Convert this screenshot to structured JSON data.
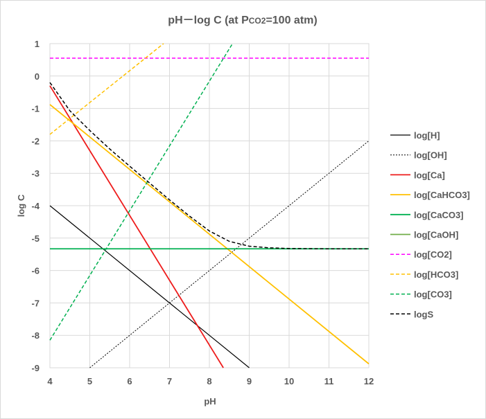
{
  "chart_data": {
    "type": "line",
    "title": {
      "main": "pH－log C (at P",
      "sub": "CO2",
      "tail": "=100 atm)"
    },
    "xlabel": "pH",
    "ylabel": "log C",
    "xlim": [
      4,
      12
    ],
    "ylim": [
      -9,
      1
    ],
    "xticks": [
      "4",
      "5",
      "6",
      "7",
      "8",
      "9",
      "10",
      "11",
      "12"
    ],
    "yticks": [
      "1",
      "0",
      "-1",
      "-2",
      "-3",
      "-4",
      "-5",
      "-6",
      "-7",
      "-8",
      "-9"
    ],
    "grid": {
      "vertical": true,
      "horizontal": true,
      "color": "#d9d9d9"
    },
    "legend_position": "right",
    "series": [
      {
        "name": "log[H]",
        "color": "#000000",
        "dash": "solid",
        "points": [
          [
            4,
            -4
          ],
          [
            9,
            -9
          ]
        ]
      },
      {
        "name": "log[OH]",
        "color": "#000000",
        "dash": "dotted",
        "points": [
          [
            5,
            -9
          ],
          [
            12,
            -2
          ]
        ]
      },
      {
        "name": "log[Ca]",
        "color": "#ee1c1c",
        "dash": "solid",
        "points": [
          [
            4,
            -0.3
          ],
          [
            8.35,
            -9
          ]
        ]
      },
      {
        "name": "log[CaHCO3]",
        "color": "#ffc000",
        "dash": "solid",
        "points": [
          [
            4,
            -0.88
          ],
          [
            12,
            -8.88
          ]
        ]
      },
      {
        "name": "log[CaCO3]",
        "color": "#00b050",
        "dash": "solid",
        "points": [
          [
            4,
            -5.33
          ],
          [
            12,
            -5.33
          ]
        ]
      },
      {
        "name": "log[CaOH]",
        "color": "#70ad47",
        "dash": "solid",
        "points": []
      },
      {
        "name": "log[CO2]",
        "color": "#ff00ff",
        "dash": "dashed",
        "points": [
          [
            4,
            0.55
          ],
          [
            12,
            0.55
          ]
        ]
      },
      {
        "name": "log[HCO3]",
        "color": "#ffc000",
        "dash": "dashed",
        "points": [
          [
            4,
            -1.8
          ],
          [
            6.85,
            1
          ]
        ]
      },
      {
        "name": "log[CO3]",
        "color": "#00b050",
        "dash": "dashed",
        "points": [
          [
            4,
            -8.15
          ],
          [
            8.58,
            1
          ]
        ]
      },
      {
        "name": "logS",
        "color": "#000000",
        "dash": "dashed",
        "points": [
          [
            4,
            -0.2
          ],
          [
            4.5,
            -1.07
          ],
          [
            5,
            -1.68
          ],
          [
            5.5,
            -2.25
          ],
          [
            6,
            -2.78
          ],
          [
            6.5,
            -3.3
          ],
          [
            7,
            -3.82
          ],
          [
            7.5,
            -4.32
          ],
          [
            8,
            -4.78
          ],
          [
            8.5,
            -5.1
          ],
          [
            9,
            -5.25
          ],
          [
            9.5,
            -5.3
          ],
          [
            10,
            -5.32
          ],
          [
            11,
            -5.33
          ],
          [
            12,
            -5.33
          ]
        ]
      }
    ]
  }
}
